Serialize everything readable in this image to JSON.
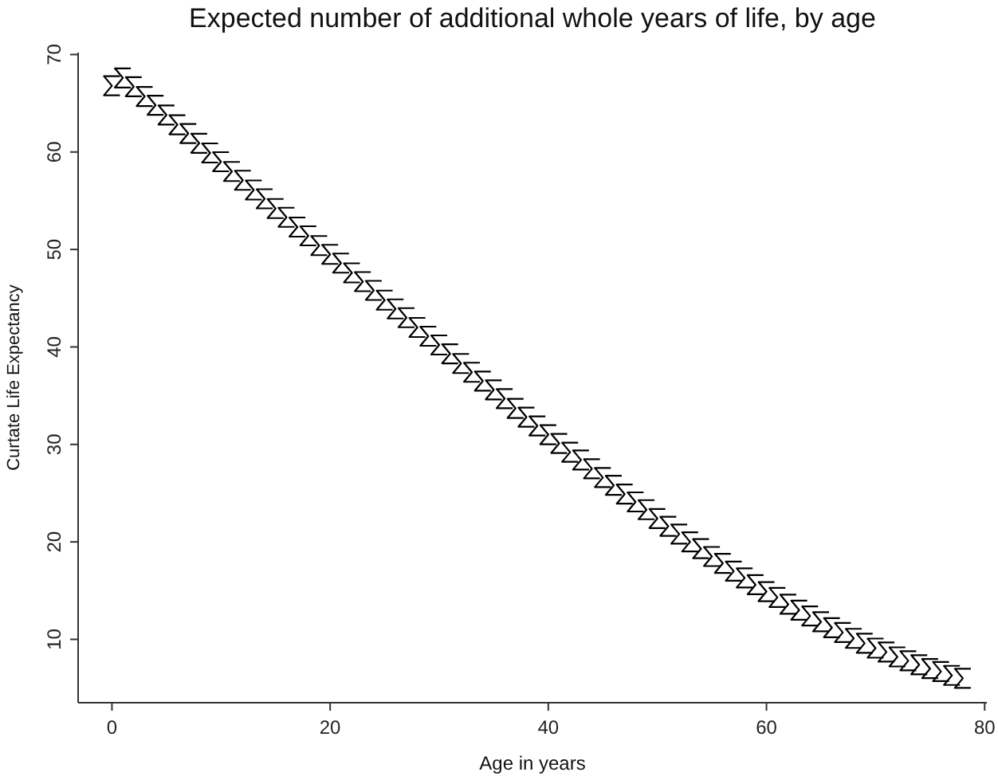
{
  "chart_data": {
    "type": "scatter",
    "title": "Expected number of additional whole years of life, by age",
    "xlabel": "Age in years",
    "ylabel": "Curtate Life Expectancy",
    "xlim": [
      -3.1,
      80.2
    ],
    "xticks": [
      0,
      20,
      40,
      60,
      80
    ],
    "ylim": [
      3.5,
      70.2
    ],
    "yticks": [
      10,
      20,
      30,
      40,
      50,
      60,
      70
    ],
    "grid": false,
    "series": [
      {
        "color": "#000000",
        "x": [
          0,
          1,
          2,
          3,
          4,
          5,
          6,
          7,
          8,
          9,
          10,
          11,
          12,
          13,
          14,
          15,
          16,
          17,
          18,
          19,
          20,
          21,
          22,
          23,
          24,
          25,
          26,
          27,
          28,
          29,
          30,
          31,
          32,
          33,
          34,
          35,
          36,
          37,
          38,
          39,
          40,
          41,
          42,
          43,
          44,
          45,
          46,
          47,
          48,
          49,
          50,
          51,
          52,
          53,
          54,
          55,
          56,
          57,
          58,
          59,
          60,
          61,
          62,
          63,
          64,
          65,
          66,
          67,
          68,
          69,
          70,
          71,
          72,
          73,
          74,
          75,
          76,
          77,
          78
        ],
        "values": [
          66.8,
          67.6,
          66.7,
          65.7,
          64.8,
          63.8,
          62.8,
          61.9,
          60.9,
          59.9,
          59.0,
          58.0,
          57.1,
          56.1,
          55.2,
          54.2,
          53.3,
          52.3,
          51.4,
          50.4,
          49.5,
          48.6,
          47.6,
          46.7,
          45.8,
          44.8,
          43.9,
          43.0,
          42.0,
          41.1,
          40.2,
          39.3,
          38.3,
          37.4,
          36.5,
          35.6,
          34.7,
          33.7,
          32.8,
          31.9,
          31.0,
          30.1,
          29.2,
          28.4,
          27.5,
          26.6,
          25.8,
          24.9,
          24.1,
          23.3,
          22.4,
          21.6,
          20.8,
          20.0,
          19.3,
          18.5,
          17.8,
          17.0,
          16.3,
          15.6,
          14.9,
          14.3,
          13.6,
          13.0,
          12.4,
          11.8,
          11.2,
          10.7,
          10.1,
          9.6,
          9.1,
          8.7,
          8.2,
          7.8,
          7.4,
          7.0,
          6.7,
          6.3,
          6.0
        ]
      }
    ]
  }
}
